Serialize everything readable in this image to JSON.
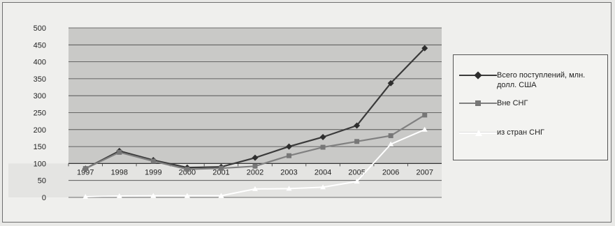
{
  "chart_data": {
    "type": "line",
    "title": "",
    "xlabel": "",
    "ylabel": "",
    "ylim": [
      0,
      500
    ],
    "yticks": [
      0,
      50,
      100,
      150,
      200,
      250,
      300,
      350,
      400,
      450,
      500
    ],
    "grid": true,
    "legend_position": "right",
    "categories": [
      "1997",
      "1998",
      "1999",
      "2000",
      "2001",
      "2002",
      "2003",
      "2004",
      "2005",
      "2006",
      "2007"
    ],
    "series": [
      {
        "name": "Всего поступлений, млн. долл. США",
        "color": "#3a3a3a",
        "marker": "diamond",
        "values": [
          85,
          137,
          110,
          88,
          90,
          117,
          150,
          178,
          212,
          337,
          440
        ]
      },
      {
        "name": "Вне СНГ",
        "color": "#808080",
        "marker": "square",
        "values": [
          85,
          133,
          107,
          83,
          86,
          92,
          123,
          148,
          165,
          182,
          243
        ]
      },
      {
        "name": "из стран СНГ",
        "color": "#ffffff",
        "marker": "triangle",
        "values": [
          2,
          4,
          5,
          5,
          5,
          25,
          26,
          30,
          47,
          157,
          200
        ]
      }
    ]
  }
}
